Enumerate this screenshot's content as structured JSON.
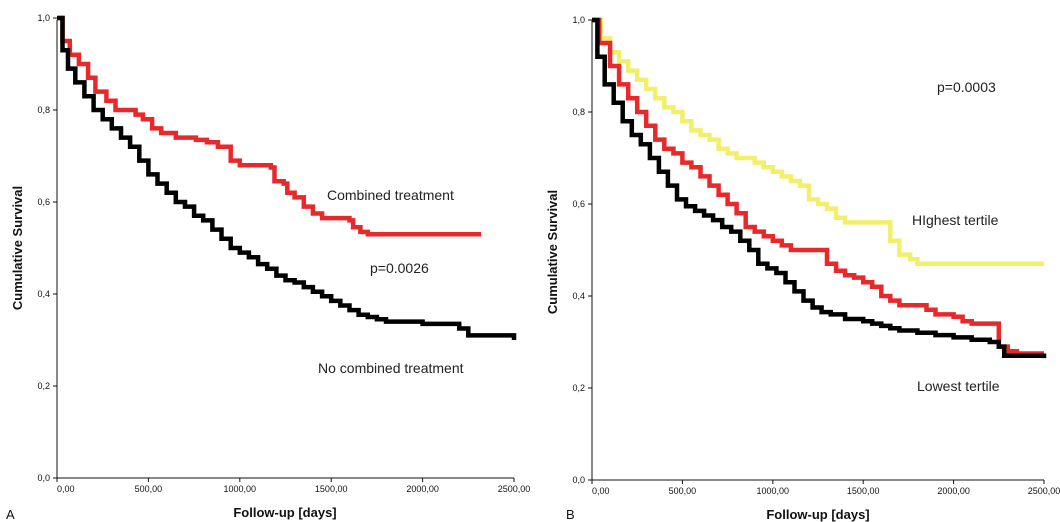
{
  "chart_data": [
    {
      "type": "line",
      "panel_label": "A",
      "xlabel": "Follow-up [days]",
      "ylabel": "Cumulative Survival",
      "xlim": [
        0,
        2500
      ],
      "ylim": [
        0,
        1
      ],
      "x_ticks": [
        "0,00",
        "500,00",
        "1000,00",
        "1500,00",
        "2000,00",
        "2500,00"
      ],
      "y_ticks": [
        "0,0",
        "0,2",
        "0,4",
        "0,6",
        "0,8",
        "1,0"
      ],
      "grid": false,
      "colors": {
        "combined": "#e8292b",
        "no_combined": "#000000"
      },
      "series": [
        {
          "name": "Combined treatment",
          "points": [
            [
              0,
              1.0
            ],
            [
              30,
              0.95
            ],
            [
              70,
              0.92
            ],
            [
              120,
              0.9
            ],
            [
              170,
              0.87
            ],
            [
              210,
              0.84
            ],
            [
              270,
              0.82
            ],
            [
              320,
              0.8
            ],
            [
              430,
              0.79
            ],
            [
              470,
              0.78
            ],
            [
              520,
              0.76
            ],
            [
              570,
              0.75
            ],
            [
              650,
              0.74
            ],
            [
              760,
              0.735
            ],
            [
              820,
              0.73
            ],
            [
              880,
              0.72
            ],
            [
              950,
              0.69
            ],
            [
              1000,
              0.68
            ],
            [
              1130,
              0.68
            ],
            [
              1170,
              0.675
            ],
            [
              1190,
              0.645
            ],
            [
              1240,
              0.64
            ],
            [
              1260,
              0.62
            ],
            [
              1300,
              0.61
            ],
            [
              1350,
              0.59
            ],
            [
              1400,
              0.575
            ],
            [
              1450,
              0.565
            ],
            [
              1550,
              0.565
            ],
            [
              1600,
              0.56
            ],
            [
              1620,
              0.545
            ],
            [
              1660,
              0.535
            ],
            [
              1700,
              0.53
            ],
            [
              2320,
              0.53
            ]
          ]
        },
        {
          "name": "No combined treatment",
          "points": [
            [
              0,
              1.0
            ],
            [
              30,
              0.93
            ],
            [
              60,
              0.89
            ],
            [
              100,
              0.86
            ],
            [
              150,
              0.83
            ],
            [
              200,
              0.8
            ],
            [
              250,
              0.78
            ],
            [
              300,
              0.76
            ],
            [
              350,
              0.74
            ],
            [
              400,
              0.72
            ],
            [
              450,
              0.69
            ],
            [
              500,
              0.66
            ],
            [
              550,
              0.64
            ],
            [
              600,
              0.62
            ],
            [
              650,
              0.6
            ],
            [
              700,
              0.59
            ],
            [
              750,
              0.57
            ],
            [
              800,
              0.56
            ],
            [
              850,
              0.54
            ],
            [
              900,
              0.52
            ],
            [
              950,
              0.5
            ],
            [
              1000,
              0.49
            ],
            [
              1050,
              0.48
            ],
            [
              1100,
              0.465
            ],
            [
              1150,
              0.455
            ],
            [
              1200,
              0.44
            ],
            [
              1250,
              0.43
            ],
            [
              1300,
              0.425
            ],
            [
              1350,
              0.415
            ],
            [
              1400,
              0.405
            ],
            [
              1450,
              0.395
            ],
            [
              1500,
              0.385
            ],
            [
              1550,
              0.375
            ],
            [
              1600,
              0.365
            ],
            [
              1650,
              0.355
            ],
            [
              1700,
              0.35
            ],
            [
              1750,
              0.345
            ],
            [
              1800,
              0.34
            ],
            [
              1900,
              0.34
            ],
            [
              2000,
              0.335
            ],
            [
              2150,
              0.335
            ],
            [
              2200,
              0.325
            ],
            [
              2250,
              0.31
            ],
            [
              2500,
              0.3
            ]
          ]
        }
      ],
      "annotations": [
        "Combined treatment",
        "p=0.0026",
        "No combined treatment"
      ]
    },
    {
      "type": "line",
      "panel_label": "B",
      "xlabel": "Follow-up [days]",
      "ylabel": "Cumulative Survival",
      "xlim": [
        0,
        2500
      ],
      "ylim": [
        0,
        1
      ],
      "x_ticks": [
        "0,00",
        "500,00",
        "1000,00",
        "1500,00",
        "2000,00",
        "2500,00"
      ],
      "y_ticks": [
        "0,0",
        "0,2",
        "0,4",
        "0,6",
        "0,8",
        "1,0"
      ],
      "grid": false,
      "colors": {
        "highest": "#f2ef6a",
        "middle": "#e8292b",
        "lowest": "#000000"
      },
      "series": [
        {
          "name": "Highest tertile",
          "points": [
            [
              0,
              1.0
            ],
            [
              50,
              0.96
            ],
            [
              100,
              0.93
            ],
            [
              150,
              0.91
            ],
            [
              200,
              0.89
            ],
            [
              250,
              0.87
            ],
            [
              300,
              0.85
            ],
            [
              350,
              0.83
            ],
            [
              400,
              0.81
            ],
            [
              450,
              0.8
            ],
            [
              500,
              0.78
            ],
            [
              550,
              0.76
            ],
            [
              600,
              0.75
            ],
            [
              650,
              0.74
            ],
            [
              700,
              0.72
            ],
            [
              750,
              0.71
            ],
            [
              800,
              0.7
            ],
            [
              850,
              0.7
            ],
            [
              900,
              0.69
            ],
            [
              950,
              0.68
            ],
            [
              1000,
              0.67
            ],
            [
              1050,
              0.66
            ],
            [
              1100,
              0.65
            ],
            [
              1150,
              0.64
            ],
            [
              1200,
              0.61
            ],
            [
              1250,
              0.6
            ],
            [
              1300,
              0.59
            ],
            [
              1350,
              0.57
            ],
            [
              1400,
              0.56
            ],
            [
              1600,
              0.56
            ],
            [
              1650,
              0.52
            ],
            [
              1700,
              0.49
            ],
            [
              1760,
              0.48
            ],
            [
              1800,
              0.47
            ],
            [
              2500,
              0.47
            ]
          ]
        },
        {
          "name": "",
          "points": [
            [
              0,
              1.0
            ],
            [
              40,
              0.95
            ],
            [
              100,
              0.9
            ],
            [
              150,
              0.86
            ],
            [
              200,
              0.83
            ],
            [
              250,
              0.8
            ],
            [
              300,
              0.77
            ],
            [
              350,
              0.74
            ],
            [
              400,
              0.72
            ],
            [
              450,
              0.71
            ],
            [
              500,
              0.69
            ],
            [
              550,
              0.68
            ],
            [
              600,
              0.66
            ],
            [
              650,
              0.64
            ],
            [
              700,
              0.62
            ],
            [
              750,
              0.6
            ],
            [
              800,
              0.58
            ],
            [
              850,
              0.55
            ],
            [
              900,
              0.54
            ],
            [
              950,
              0.53
            ],
            [
              1000,
              0.52
            ],
            [
              1050,
              0.51
            ],
            [
              1100,
              0.5
            ],
            [
              1250,
              0.5
            ],
            [
              1300,
              0.47
            ],
            [
              1350,
              0.455
            ],
            [
              1400,
              0.445
            ],
            [
              1450,
              0.44
            ],
            [
              1500,
              0.43
            ],
            [
              1550,
              0.42
            ],
            [
              1600,
              0.4
            ],
            [
              1650,
              0.39
            ],
            [
              1700,
              0.38
            ],
            [
              1800,
              0.38
            ],
            [
              1850,
              0.37
            ],
            [
              1900,
              0.36
            ],
            [
              2000,
              0.355
            ],
            [
              2050,
              0.345
            ],
            [
              2100,
              0.34
            ],
            [
              2150,
              0.34
            ],
            [
              2200,
              0.34
            ],
            [
              2250,
              0.29
            ],
            [
              2300,
              0.28
            ],
            [
              2350,
              0.275
            ],
            [
              2500,
              0.275
            ]
          ]
        },
        {
          "name": "Lowest tertile",
          "points": [
            [
              0,
              1.0
            ],
            [
              30,
              0.92
            ],
            [
              70,
              0.86
            ],
            [
              120,
              0.82
            ],
            [
              170,
              0.78
            ],
            [
              220,
              0.75
            ],
            [
              270,
              0.73
            ],
            [
              320,
              0.7
            ],
            [
              370,
              0.67
            ],
            [
              420,
              0.64
            ],
            [
              470,
              0.61
            ],
            [
              520,
              0.595
            ],
            [
              570,
              0.585
            ],
            [
              620,
              0.575
            ],
            [
              670,
              0.565
            ],
            [
              720,
              0.55
            ],
            [
              770,
              0.54
            ],
            [
              820,
              0.52
            ],
            [
              870,
              0.5
            ],
            [
              920,
              0.47
            ],
            [
              970,
              0.46
            ],
            [
              1020,
              0.45
            ],
            [
              1070,
              0.43
            ],
            [
              1120,
              0.41
            ],
            [
              1170,
              0.39
            ],
            [
              1220,
              0.375
            ],
            [
              1270,
              0.365
            ],
            [
              1320,
              0.36
            ],
            [
              1400,
              0.35
            ],
            [
              1500,
              0.345
            ],
            [
              1550,
              0.34
            ],
            [
              1600,
              0.335
            ],
            [
              1650,
              0.33
            ],
            [
              1700,
              0.325
            ],
            [
              1800,
              0.32
            ],
            [
              1900,
              0.315
            ],
            [
              2000,
              0.31
            ],
            [
              2100,
              0.305
            ],
            [
              2200,
              0.3
            ],
            [
              2250,
              0.29
            ],
            [
              2280,
              0.27
            ],
            [
              2500,
              0.265
            ]
          ]
        }
      ],
      "annotations": [
        "p=0.0003",
        "HIghest tertile",
        "Lowest tertile"
      ]
    }
  ]
}
